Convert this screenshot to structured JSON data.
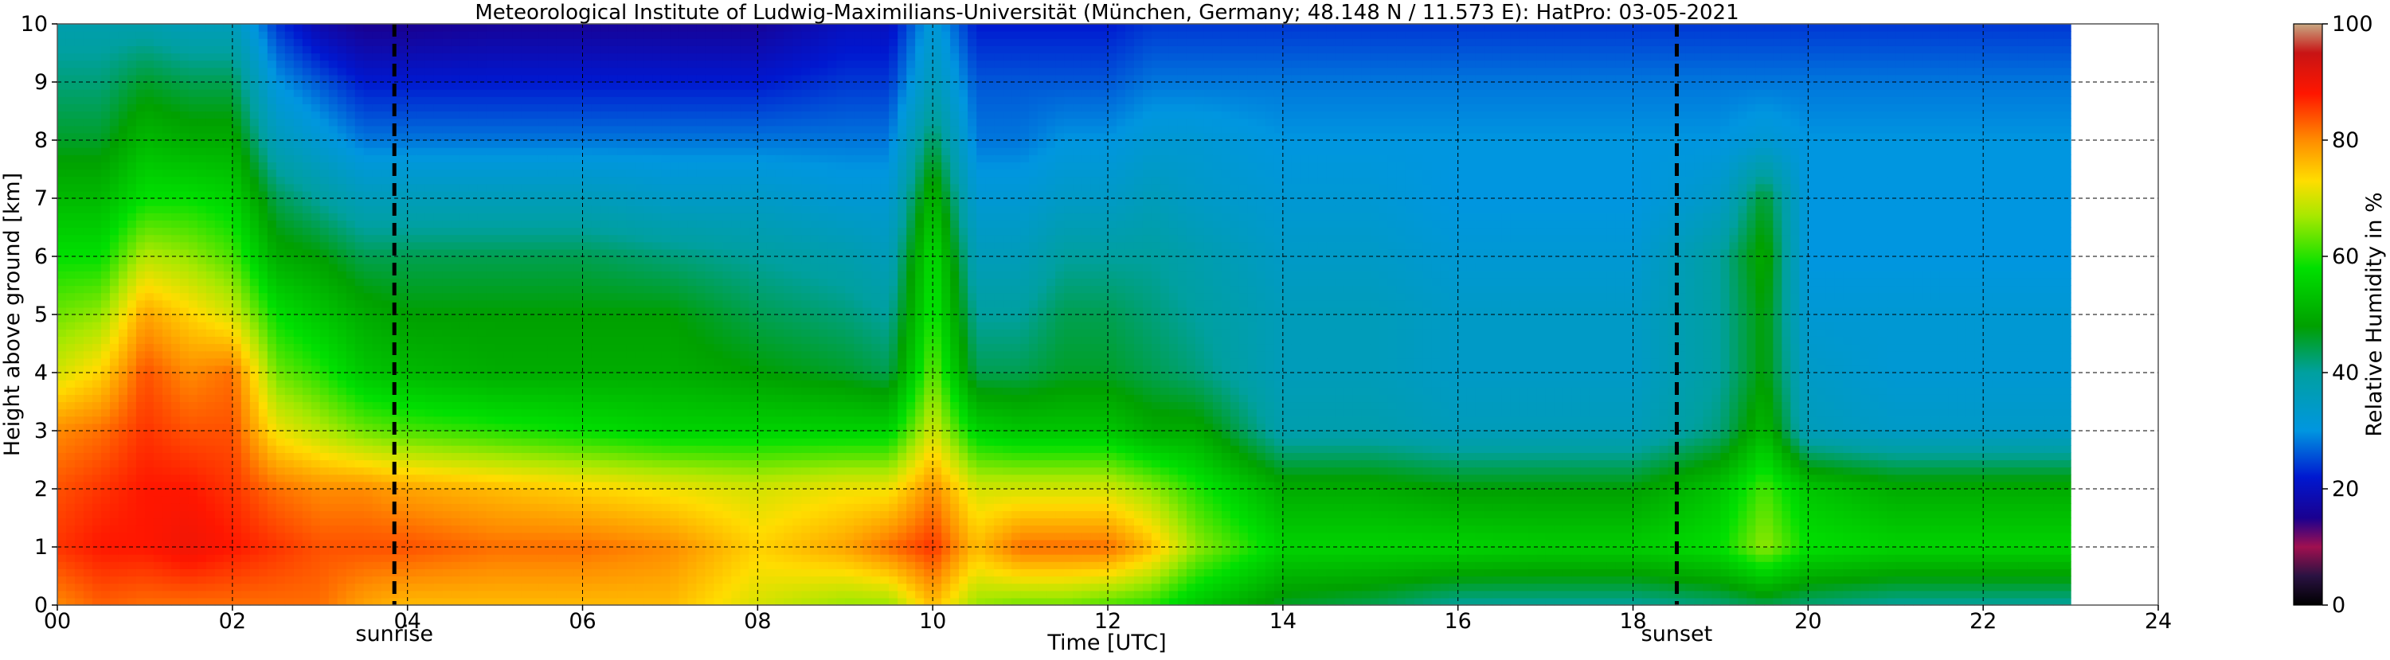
{
  "chart_data": {
    "type": "heatmap",
    "title": "Meteorological Institute of Ludwig-Maximilians-Universität (München, Germany; 48.148 N / 11.573 E):    HatPro: 03-05-2021",
    "xlabel": "Time [UTC]",
    "ylabel": "Height above ground [km]",
    "colorbar_label": "Relative Humidity in %",
    "xlim": [
      0,
      24
    ],
    "ylim": [
      0,
      10
    ],
    "x_ticks": [
      0,
      2,
      4,
      6,
      8,
      10,
      12,
      14,
      16,
      18,
      20,
      22,
      24
    ],
    "x_tick_labels": [
      "00",
      "02",
      "04",
      "06",
      "08",
      "10",
      "12",
      "14",
      "16",
      "18",
      "20",
      "22",
      "24"
    ],
    "y_ticks": [
      0,
      1,
      2,
      3,
      4,
      5,
      6,
      7,
      8,
      9,
      10
    ],
    "y_tick_labels": [
      "0",
      "1",
      "2",
      "3",
      "4",
      "5",
      "6",
      "7",
      "8",
      "9",
      "10"
    ],
    "colorbar_ticks": [
      0,
      20,
      40,
      60,
      80,
      100
    ],
    "colorbar_tick_labels": [
      "0",
      "20",
      "40",
      "60",
      "80",
      "100"
    ],
    "grid": true,
    "data_end_hour": 23.0,
    "events": [
      {
        "label": "sunrise",
        "hour": 3.85
      },
      {
        "label": "sunset",
        "hour": 18.5
      }
    ],
    "rh_profiles": [
      {
        "hour": 0.0,
        "rh": [
          80,
          86,
          84,
          80,
          70,
          64,
          58,
          52,
          46,
          42,
          38
        ]
      },
      {
        "hour": 0.5,
        "rh": [
          83,
          88,
          86,
          82,
          74,
          66,
          58,
          52,
          46,
          42,
          38
        ]
      },
      {
        "hour": 1.0,
        "rh": [
          82,
          88,
          88,
          86,
          84,
          78,
          68,
          58,
          52,
          46,
          38
        ]
      },
      {
        "hour": 1.5,
        "rh": [
          82,
          90,
          88,
          84,
          80,
          74,
          66,
          58,
          50,
          44,
          36
        ]
      },
      {
        "hour": 2.0,
        "rh": [
          82,
          88,
          86,
          84,
          82,
          70,
          62,
          56,
          50,
          44,
          36
        ]
      },
      {
        "hour": 2.5,
        "rh": [
          82,
          86,
          82,
          72,
          64,
          58,
          50,
          44,
          36,
          30,
          24
        ]
      },
      {
        "hour": 3.0,
        "rh": [
          82,
          84,
          80,
          68,
          60,
          54,
          48,
          40,
          32,
          26,
          18
        ]
      },
      {
        "hour": 3.5,
        "rh": [
          78,
          84,
          80,
          64,
          54,
          50,
          44,
          36,
          28,
          22,
          15
        ]
      },
      {
        "hour": 4.0,
        "rh": [
          76,
          84,
          78,
          62,
          52,
          48,
          44,
          36,
          28,
          22,
          15
        ]
      },
      {
        "hour": 5.0,
        "rh": [
          76,
          82,
          76,
          60,
          50,
          48,
          44,
          36,
          28,
          22,
          16
        ]
      },
      {
        "hour": 6.0,
        "rh": [
          76,
          82,
          74,
          58,
          50,
          48,
          44,
          36,
          28,
          22,
          16
        ]
      },
      {
        "hour": 7.0,
        "rh": [
          76,
          80,
          72,
          56,
          50,
          48,
          42,
          34,
          28,
          22,
          16
        ]
      },
      {
        "hour": 8.0,
        "rh": [
          70,
          74,
          70,
          56,
          48,
          44,
          40,
          34,
          28,
          22,
          16
        ]
      },
      {
        "hour": 9.0,
        "rh": [
          66,
          78,
          72,
          56,
          46,
          42,
          38,
          32,
          28,
          24,
          20
        ]
      },
      {
        "hour": 9.5,
        "rh": [
          66,
          82,
          72,
          56,
          44,
          40,
          36,
          32,
          28,
          24,
          20
        ]
      },
      {
        "hour": 10.0,
        "rh": [
          76,
          86,
          80,
          70,
          64,
          60,
          58,
          52,
          44,
          36,
          32
        ]
      },
      {
        "hour": 10.5,
        "rh": [
          66,
          76,
          70,
          56,
          44,
          40,
          36,
          32,
          28,
          26,
          22
        ]
      },
      {
        "hour": 11.0,
        "rh": [
          64,
          82,
          70,
          54,
          44,
          40,
          36,
          32,
          28,
          26,
          22
        ]
      },
      {
        "hour": 11.5,
        "rh": [
          64,
          82,
          70,
          54,
          46,
          44,
          40,
          34,
          30,
          26,
          22
        ]
      },
      {
        "hour": 12.0,
        "rh": [
          62,
          82,
          70,
          54,
          46,
          44,
          40,
          34,
          30,
          26,
          22
        ]
      },
      {
        "hour": 12.5,
        "rh": [
          60,
          76,
          66,
          50,
          44,
          42,
          40,
          36,
          32,
          28,
          24
        ]
      },
      {
        "hour": 13.0,
        "rh": [
          54,
          66,
          60,
          50,
          42,
          40,
          38,
          34,
          32,
          28,
          24
        ]
      },
      {
        "hour": 14.0,
        "rh": [
          46,
          56,
          50,
          38,
          36,
          36,
          34,
          32,
          30,
          28,
          24
        ]
      },
      {
        "hour": 15.0,
        "rh": [
          44,
          56,
          50,
          38,
          36,
          36,
          34,
          32,
          30,
          28,
          24
        ]
      },
      {
        "hour": 16.0,
        "rh": [
          40,
          56,
          48,
          36,
          34,
          34,
          32,
          30,
          30,
          28,
          24
        ]
      },
      {
        "hour": 17.0,
        "rh": [
          40,
          55,
          48,
          36,
          34,
          34,
          32,
          30,
          30,
          28,
          24
        ]
      },
      {
        "hour": 18.0,
        "rh": [
          40,
          55,
          48,
          36,
          34,
          34,
          32,
          30,
          30,
          28,
          24
        ]
      },
      {
        "hour": 19.0,
        "rh": [
          42,
          58,
          54,
          42,
          40,
          40,
          40,
          34,
          30,
          28,
          24
        ]
      },
      {
        "hour": 19.5,
        "rh": [
          44,
          66,
          62,
          52,
          48,
          48,
          50,
          46,
          32,
          28,
          24
        ]
      },
      {
        "hour": 20.0,
        "rh": [
          42,
          58,
          54,
          36,
          34,
          32,
          30,
          30,
          30,
          28,
          24
        ]
      },
      {
        "hour": 21.0,
        "rh": [
          40,
          56,
          50,
          34,
          32,
          32,
          30,
          30,
          30,
          28,
          24
        ]
      },
      {
        "hour": 22.0,
        "rh": [
          40,
          56,
          50,
          34,
          32,
          32,
          30,
          30,
          30,
          28,
          24
        ]
      },
      {
        "hour": 23.0,
        "rh": [
          40,
          56,
          50,
          34,
          32,
          32,
          30,
          30,
          30,
          28,
          24
        ]
      }
    ]
  }
}
